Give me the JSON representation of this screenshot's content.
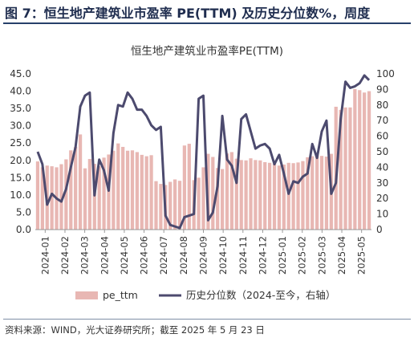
{
  "figure_title": "图 7：恒生地产建筑业市盈率 PE(TTM) 及历史分位数%，周度",
  "source_note": "资料来源：WIND，光大证券研究所；截至 2025 年 5 月 23 日",
  "colors": {
    "bar": "#e8b7b3",
    "line": "#4c4a6e",
    "title_bar": "#27406b"
  },
  "chart_data": {
    "type": "bar",
    "title": "恒生地产建筑业市盈率PE(TTM)",
    "x_tick_labels": [
      "2024-01",
      "2024-02",
      "2024-03",
      "2024-04",
      "2024-05",
      "2024-06",
      "2024-07",
      "2024-08",
      "2024-09",
      "2024-10",
      "2024-11",
      "2024-12",
      "2025-01",
      "2025-02",
      "2025-03",
      "2025-04",
      "2025-05"
    ],
    "y_left": {
      "min": 0,
      "max": 45,
      "step": 5,
      "tick_labels": [
        "0.0",
        "5.0",
        "10.0",
        "15.0",
        "20.0",
        "25.0",
        "30.0",
        "35.0",
        "40.0",
        "45.0"
      ]
    },
    "y_right": {
      "min": 0,
      "max": 100,
      "step": 10,
      "tick_labels": [
        "0",
        "10",
        "20",
        "30",
        "40",
        "50",
        "60",
        "70",
        "80",
        "90",
        "100"
      ]
    },
    "legend": {
      "position": "bottom",
      "bar_label": "pe_ttm",
      "line_label": "历史分位数（2024-至今，右轴）"
    },
    "series": [
      {
        "name": "pe_ttm",
        "type": "bar",
        "axis": "left",
        "values": [
          19.7,
          18.0,
          18.5,
          18.3,
          18.0,
          18.9,
          20.3,
          22.9,
          23.9,
          27.5,
          17.7,
          20.4,
          19.0,
          18.3,
          20.8,
          21.7,
          22.8,
          24.9,
          23.9,
          22.8,
          22.9,
          22.4,
          21.6,
          21.2,
          21.5,
          14.0,
          13.2,
          12.9,
          13.8,
          14.5,
          14.1,
          24.3,
          24.8,
          14.3,
          15.0,
          18.0,
          21.9,
          21.0,
          17.8,
          17.5,
          22.0,
          22.4,
          20.5,
          20.1,
          20.0,
          20.6,
          20.1,
          20.0,
          19.5,
          19.3,
          19.0,
          18.5,
          18.8,
          19.3,
          19.2,
          19.4,
          19.8,
          20.9,
          21.2,
          21.5,
          21.3,
          21.1,
          21.9,
          35.5,
          34.6,
          35.3,
          35.3,
          40.6,
          40.3,
          39.6,
          40.0
        ]
      },
      {
        "name": "历史分位数（2024-至今，右轴）",
        "type": "line",
        "axis": "right",
        "values": [
          50,
          42,
          16,
          23,
          20,
          18,
          26,
          40,
          53,
          79,
          86,
          88,
          22,
          45,
          38,
          25,
          62,
          80,
          79,
          88,
          84,
          77,
          77,
          73,
          67,
          64,
          66,
          9,
          3,
          2,
          1,
          8,
          9,
          10,
          84,
          86,
          6,
          11,
          28,
          73,
          45,
          41,
          30,
          71,
          74,
          63,
          52,
          54,
          55,
          52,
          42,
          48,
          36,
          23,
          31,
          30,
          34,
          36,
          55,
          46,
          63,
          70,
          23,
          30,
          71,
          95,
          91,
          92,
          94,
          99,
          96
        ]
      }
    ]
  }
}
